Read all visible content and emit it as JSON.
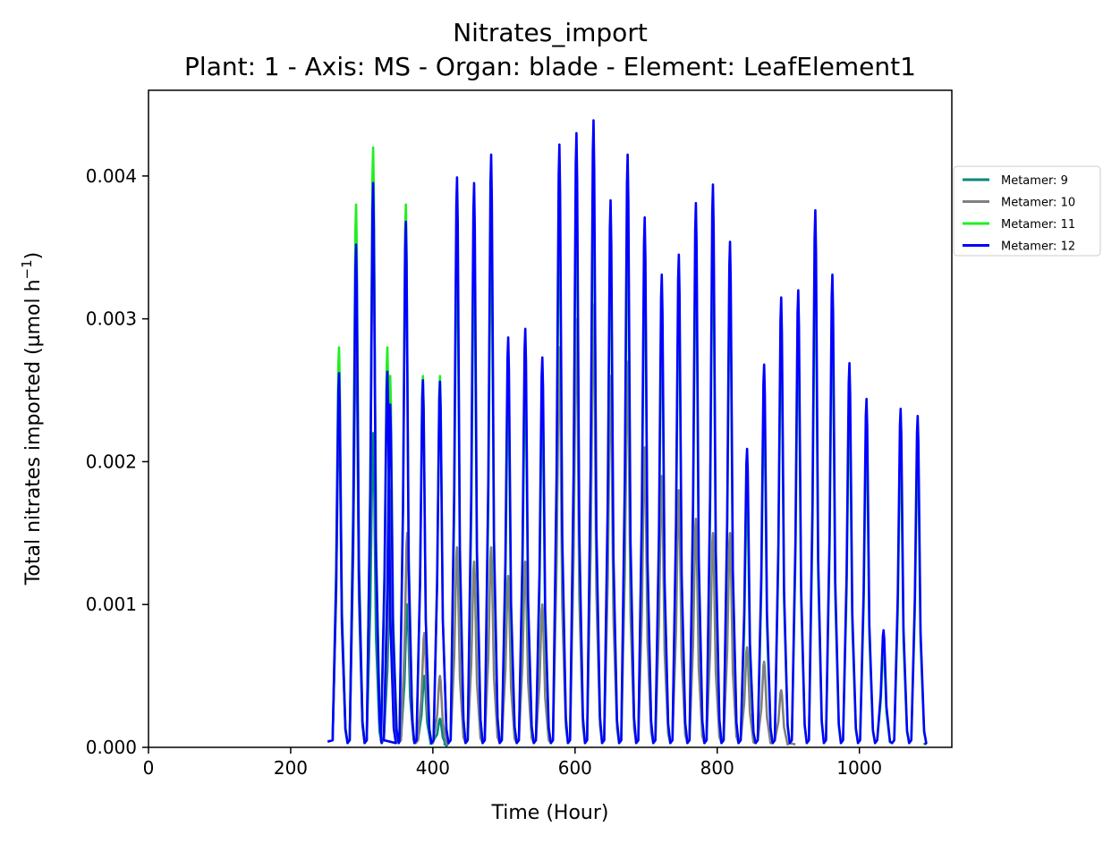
{
  "chart_data": {
    "type": "line",
    "title": "Nitrates_import",
    "subtitle": "Plant: 1 - Axis: MS - Organ: blade - Element: LeafElement1",
    "xlabel": "Time (Hour)",
    "ylabel": "Total nitrates imported (µmol h",
    "ylabel_sup": "−1",
    "ylabel_close": ")",
    "xlim": [
      0,
      1130
    ],
    "ylim": [
      0,
      0.0046
    ],
    "x_ticks": [
      0,
      200,
      400,
      600,
      800,
      1000
    ],
    "x_tick_labels": [
      "0",
      "200",
      "400",
      "600",
      "800",
      "1000"
    ],
    "y_ticks": [
      0,
      0.001,
      0.002,
      0.003,
      0.004
    ],
    "y_tick_labels": [
      "0.000",
      "0.001",
      "0.002",
      "0.003",
      "0.004"
    ],
    "grid": false,
    "legend_position": "right",
    "series": [
      {
        "name": "Metamer: 9",
        "color": "#00897b",
        "start": 252,
        "end": 415,
        "peaks": [
          [
            268,
            0.0024
          ],
          [
            292,
            0.003
          ],
          [
            316,
            0.0022
          ],
          [
            340,
            0.0012
          ],
          [
            364,
            0.001
          ],
          [
            388,
            0.0005
          ],
          [
            410,
            0.0002
          ]
        ]
      },
      {
        "name": "Metamer: 10",
        "color": "#808080",
        "start": 252,
        "end": 910,
        "peaks": [
          [
            268,
            0.0025
          ],
          [
            292,
            0.0033
          ],
          [
            316,
            0.0039
          ],
          [
            340,
            0.0018
          ],
          [
            364,
            0.0015
          ],
          [
            388,
            0.0008
          ],
          [
            410,
            0.0005
          ],
          [
            434,
            0.0014
          ],
          [
            458,
            0.0013
          ],
          [
            482,
            0.0014
          ],
          [
            506,
            0.0012
          ],
          [
            530,
            0.0013
          ],
          [
            554,
            0.001
          ],
          [
            578,
            0.0028
          ],
          [
            602,
            0.003
          ],
          [
            626,
            0.0031
          ],
          [
            650,
            0.0026
          ],
          [
            674,
            0.0027
          ],
          [
            698,
            0.0021
          ],
          [
            722,
            0.0019
          ],
          [
            746,
            0.0018
          ],
          [
            770,
            0.0016
          ],
          [
            794,
            0.0015
          ],
          [
            818,
            0.0015
          ],
          [
            842,
            0.0007
          ],
          [
            866,
            0.0006
          ],
          [
            890,
            0.0004
          ]
        ]
      },
      {
        "name": "Metamer: 11",
        "color": "#22ee22",
        "start": 252,
        "end": 1090,
        "peaks": [
          [
            268,
            0.0028
          ],
          [
            292,
            0.0038
          ],
          [
            316,
            0.0042
          ],
          [
            336,
            0.0028
          ],
          [
            340,
            0.0026
          ],
          [
            362,
            0.0038
          ],
          [
            386,
            0.0026
          ],
          [
            410,
            0.0026
          ],
          [
            434,
            0.0036
          ],
          [
            458,
            0.0035
          ],
          [
            482,
            0.0037
          ],
          [
            506,
            0.0025
          ],
          [
            530,
            0.0026
          ],
          [
            554,
            0.0024
          ],
          [
            578,
            0.0038
          ],
          [
            602,
            0.0039
          ],
          [
            626,
            0.004
          ],
          [
            650,
            0.0035
          ],
          [
            674,
            0.0037
          ],
          [
            698,
            0.0034
          ],
          [
            722,
            0.003
          ],
          [
            746,
            0.0032
          ],
          [
            770,
            0.0035
          ],
          [
            794,
            0.0036
          ],
          [
            818,
            0.0033
          ],
          [
            842,
            0.0018
          ],
          [
            866,
            0.0024
          ],
          [
            890,
            0.0029
          ],
          [
            914,
            0.0029
          ],
          [
            938,
            0.0034
          ],
          [
            962,
            0.003
          ],
          [
            986,
            0.0024
          ],
          [
            1010,
            0.0022
          ],
          [
            1034,
            0.0007
          ],
          [
            1058,
            0.0021
          ],
          [
            1082,
            0.0021
          ]
        ]
      },
      {
        "name": "Metamer: 12",
        "color": "#0000ff",
        "start": 252,
        "end": 1092,
        "peaks": [
          [
            268,
            0.00262
          ],
          [
            292,
            0.00352
          ],
          [
            316,
            0.00395
          ],
          [
            336,
            0.00263
          ],
          [
            340,
            0.0024
          ],
          [
            362,
            0.00368
          ],
          [
            386,
            0.00257
          ],
          [
            410,
            0.00256
          ],
          [
            434,
            0.00399
          ],
          [
            458,
            0.00395
          ],
          [
            482,
            0.00415
          ],
          [
            506,
            0.00287
          ],
          [
            530,
            0.00293
          ],
          [
            554,
            0.00273
          ],
          [
            578,
            0.00422
          ],
          [
            602,
            0.0043
          ],
          [
            626,
            0.00439
          ],
          [
            650,
            0.00383
          ],
          [
            674,
            0.00415
          ],
          [
            698,
            0.00371
          ],
          [
            722,
            0.00331
          ],
          [
            746,
            0.00345
          ],
          [
            770,
            0.00381
          ],
          [
            794,
            0.00394
          ],
          [
            818,
            0.00354
          ],
          [
            842,
            0.00209
          ],
          [
            866,
            0.00268
          ],
          [
            890,
            0.00315
          ],
          [
            914,
            0.0032
          ],
          [
            938,
            0.00376
          ],
          [
            962,
            0.00331
          ],
          [
            986,
            0.00269
          ],
          [
            1010,
            0.00244
          ],
          [
            1034,
            0.00082
          ],
          [
            1058,
            0.00237
          ],
          [
            1082,
            0.00232
          ]
        ]
      }
    ]
  }
}
